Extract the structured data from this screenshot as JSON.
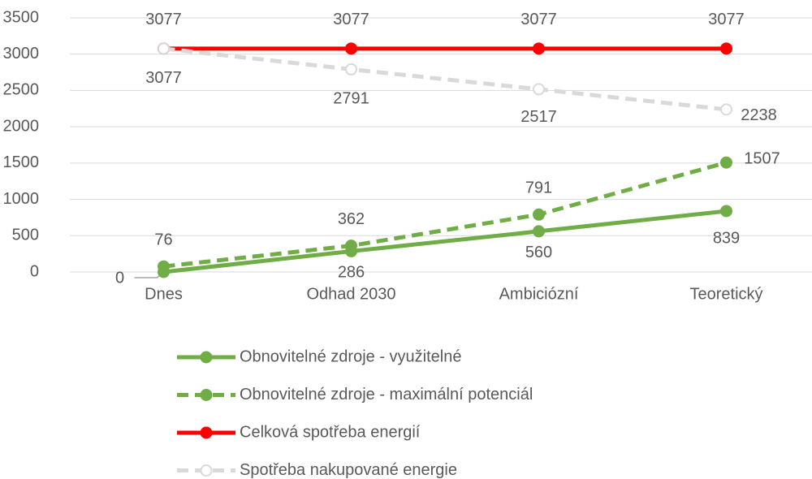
{
  "chart_data": {
    "type": "line",
    "categories": [
      "Dnes",
      "Odhad 2030",
      "Ambiciózní",
      "Teoretický"
    ],
    "series": [
      {
        "name": "Obnovitelné zdroje - využitelné",
        "color": "#70ad47",
        "dashed": false,
        "values": [
          0,
          286,
          560,
          839
        ]
      },
      {
        "name": "Obnovitelné zdroje - maximální potenciál",
        "color": "#70ad47",
        "dashed": true,
        "values": [
          76,
          362,
          791,
          1507
        ]
      },
      {
        "name": "Celková spotřeba energií",
        "color": "#ff0000",
        "dashed": false,
        "values": [
          3077,
          3077,
          3077,
          3077
        ]
      },
      {
        "name": "Spotřeba nakupované energie",
        "color": "#d9d9d9",
        "dashed": true,
        "values": [
          3077,
          2791,
          2517,
          2238
        ]
      }
    ],
    "ylim": [
      0,
      3500
    ],
    "yticks": [
      0,
      500,
      1000,
      1500,
      2000,
      2500,
      3000,
      3500
    ],
    "grid": true,
    "legend": "bottom"
  }
}
